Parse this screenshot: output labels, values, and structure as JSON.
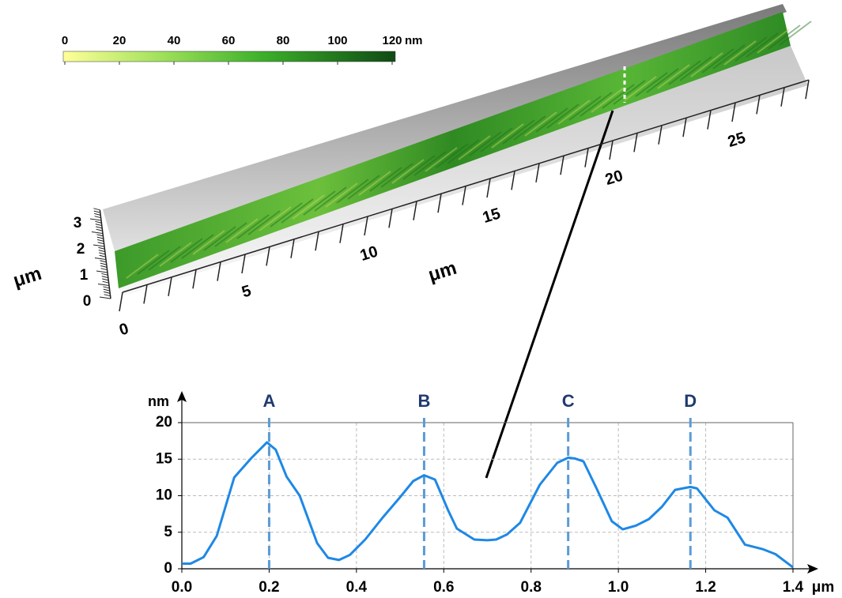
{
  "colorbar": {
    "ticks": [
      0,
      20,
      40,
      60,
      80,
      100,
      120
    ],
    "unit": "nm"
  },
  "surface": {
    "x_ticks": [
      0,
      5,
      10,
      15,
      20,
      25
    ],
    "x_label": "μm",
    "z_ticks": [
      0,
      1,
      2,
      3
    ],
    "z_label": "μm"
  },
  "chart_data": {
    "type": "line",
    "x": [
      0,
      0.02,
      0.05,
      0.08,
      0.12,
      0.16,
      0.195,
      0.215,
      0.24,
      0.27,
      0.31,
      0.335,
      0.36,
      0.385,
      0.42,
      0.46,
      0.5,
      0.53,
      0.555,
      0.58,
      0.61,
      0.63,
      0.67,
      0.7,
      0.72,
      0.745,
      0.775,
      0.82,
      0.86,
      0.885,
      0.9,
      0.92,
      0.95,
      0.985,
      1.01,
      1.04,
      1.07,
      1.1,
      1.13,
      1.165,
      1.18,
      1.22,
      1.25,
      1.29,
      1.33,
      1.36,
      1.4
    ],
    "series": [
      {
        "color": "#1e88e5",
        "values": [
          0.7,
          0.7,
          1.6,
          4.5,
          12.5,
          15.2,
          17.3,
          16.3,
          12.6,
          10,
          3.5,
          1.5,
          1.2,
          1.9,
          4,
          7,
          9.8,
          12,
          12.8,
          12.2,
          8,
          5.5,
          4,
          3.9,
          4,
          4.7,
          6.3,
          11.5,
          14.5,
          15.2,
          15.1,
          14.7,
          11,
          6.5,
          5.4,
          5.9,
          6.8,
          8.5,
          10.8,
          11.2,
          11,
          8,
          7,
          3.3,
          2.7,
          2,
          0.2
        ]
      }
    ],
    "xlim": [
      0,
      1.4
    ],
    "ylim": [
      0,
      20
    ],
    "xticks": [
      {
        "value": 0,
        "label": "0.0"
      },
      {
        "value": 0.2,
        "label": "0.2"
      },
      {
        "value": 0.4,
        "label": "0.4"
      },
      {
        "value": 0.6,
        "label": "0.6"
      },
      {
        "value": 0.8,
        "label": "0.8"
      },
      {
        "value": 1.0,
        "label": "1.0"
      },
      {
        "value": 1.2,
        "label": "1.2"
      },
      {
        "value": 1.4,
        "label": "1.4"
      }
    ],
    "yticks": [
      0,
      5,
      10,
      15,
      20
    ],
    "x_unit": "μm",
    "y_unit": "nm",
    "grid": true,
    "markers": [
      {
        "label": "A",
        "x": 0.2
      },
      {
        "label": "B",
        "x": 0.555
      },
      {
        "label": "C",
        "x": 0.885
      },
      {
        "label": "D",
        "x": 1.165
      }
    ]
  }
}
